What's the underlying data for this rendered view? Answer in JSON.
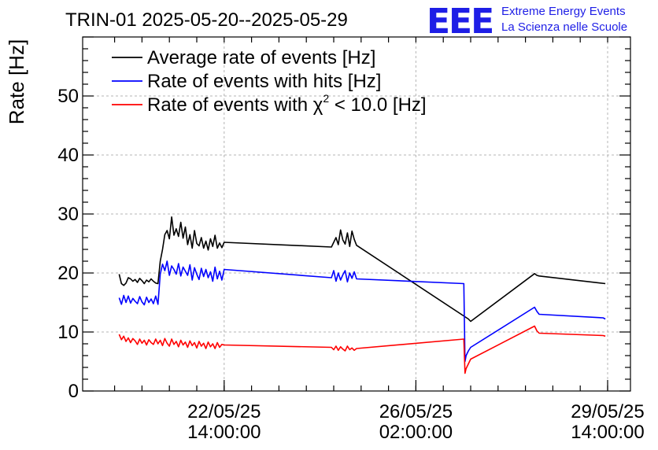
{
  "header": {
    "title": "TRIN-01 2025-05-20--2025-05-29",
    "logo_text": "EEE",
    "logo_line1": "Extreme Energy Events",
    "logo_line2": "La Scienza nelle Scuole"
  },
  "chart_data": {
    "type": "line",
    "title": "TRIN-01 2025-05-20--2025-05-29",
    "ylabel": "Rate [Hz]",
    "xlabel": "",
    "ylim": [
      0,
      60
    ],
    "xlim_hours": [
      0,
      240
    ],
    "grid": true,
    "legend_position": "top-left",
    "x_unit": "hours since 2025-05-20 00:00",
    "x_ticks": [
      {
        "x": 62,
        "line1": "22/05/25",
        "line2": "14:00:00"
      },
      {
        "x": 146,
        "line1": "26/05/25",
        "line2": "02:00:00"
      },
      {
        "x": 230,
        "line1": "29/05/25",
        "line2": "14:00:00"
      }
    ],
    "y_ticks": [
      0,
      10,
      20,
      30,
      40,
      50
    ],
    "series": [
      {
        "name": "Average rate of events [Hz]",
        "color": "#000000",
        "x": [
          16,
          17,
          18,
          19,
          20,
          21,
          22,
          23,
          24,
          25,
          26,
          27,
          28,
          29,
          30,
          31,
          32,
          33,
          34,
          35,
          36,
          37,
          38,
          39,
          40,
          41,
          42,
          43,
          44,
          45,
          46,
          47,
          48,
          49,
          50,
          51,
          52,
          53,
          54,
          55,
          56,
          57,
          58,
          59,
          60,
          61,
          62,
          109,
          110,
          111,
          112,
          113,
          114,
          115,
          116,
          117,
          118,
          119,
          120,
          169,
          170,
          198,
          199,
          200,
          229
        ],
        "y": [
          19.8,
          18.2,
          17.9,
          18.3,
          19.2,
          19.0,
          18.6,
          18.9,
          18.4,
          19.1,
          18.7,
          18.2,
          18.8,
          18.5,
          19.0,
          18.6,
          18.3,
          18.2,
          22.0,
          24.0,
          26.5,
          27.2,
          25.8,
          29.5,
          26.4,
          27.5,
          26.2,
          28.6,
          25.9,
          27.8,
          24.8,
          26.5,
          24.2,
          27.2,
          25.0,
          24.6,
          26.0,
          24.2,
          25.4,
          23.9,
          25.8,
          24.5,
          26.4,
          24.2,
          25.1,
          24.3,
          25.2,
          24.4,
          25.2,
          26.0,
          24.8,
          27.3,
          25.6,
          24.9,
          26.8,
          24.5,
          27.1,
          25.7,
          24.7,
          12.2,
          11.8,
          19.9,
          19.6,
          19.5,
          18.2
        ]
      },
      {
        "name": "Rate of events with hits [Hz]",
        "color": "#0000ff",
        "x": [
          16,
          17,
          18,
          19,
          20,
          21,
          22,
          23,
          24,
          25,
          26,
          27,
          28,
          29,
          30,
          31,
          32,
          33,
          34,
          35,
          36,
          37,
          38,
          39,
          40,
          41,
          42,
          43,
          44,
          45,
          46,
          47,
          48,
          49,
          50,
          51,
          52,
          53,
          54,
          55,
          56,
          57,
          58,
          59,
          60,
          61,
          62,
          109,
          110,
          111,
          112,
          113,
          114,
          115,
          116,
          117,
          118,
          119,
          120,
          167,
          167.5,
          168,
          169,
          170,
          198,
          199,
          200,
          228,
          229
        ],
        "y": [
          15.8,
          14.7,
          16.2,
          15.0,
          16.1,
          14.9,
          15.7,
          15.2,
          14.8,
          16.0,
          15.1,
          14.6,
          15.9,
          15.0,
          15.6,
          14.8,
          16.1,
          14.7,
          19.8,
          21.5,
          20.4,
          22.0,
          19.6,
          21.2,
          20.6,
          19.8,
          21.6,
          19.5,
          21.0,
          20.3,
          19.6,
          21.4,
          18.8,
          20.9,
          19.8,
          18.9,
          20.8,
          19.4,
          20.6,
          19.2,
          20.2,
          18.6,
          21.0,
          19.0,
          20.3,
          18.8,
          20.6,
          19.2,
          20.4,
          18.6,
          20.0,
          18.8,
          19.7,
          20.4,
          18.5,
          20.0,
          19.1,
          20.2,
          19.0,
          18.2,
          5.0,
          6.0,
          6.8,
          7.4,
          14.2,
          13.5,
          13.0,
          12.4,
          12.2
        ]
      },
      {
        "name": "Rate of events with χ² < 10.0 [Hz]",
        "color": "#ff0000",
        "x": [
          16,
          17,
          18,
          19,
          20,
          21,
          22,
          23,
          24,
          25,
          26,
          27,
          28,
          29,
          30,
          31,
          32,
          33,
          34,
          35,
          36,
          37,
          38,
          39,
          40,
          41,
          42,
          43,
          44,
          45,
          46,
          47,
          48,
          49,
          50,
          51,
          52,
          53,
          54,
          55,
          56,
          57,
          58,
          59,
          60,
          61,
          62,
          109,
          110,
          111,
          112,
          113,
          114,
          115,
          116,
          117,
          118,
          119,
          120,
          167,
          167.5,
          168,
          169,
          170,
          198,
          199,
          200,
          228,
          229
        ],
        "y": [
          9.6,
          8.7,
          9.3,
          8.4,
          9.0,
          8.2,
          8.9,
          8.5,
          7.9,
          8.8,
          8.1,
          8.6,
          7.8,
          8.7,
          8.2,
          7.9,
          8.8,
          8.0,
          8.6,
          7.7,
          8.9,
          8.1,
          7.6,
          8.8,
          7.9,
          8.4,
          7.5,
          8.6,
          7.8,
          8.3,
          7.4,
          8.5,
          7.7,
          8.2,
          7.3,
          8.4,
          7.6,
          8.1,
          7.2,
          8.3,
          7.5,
          8.0,
          7.2,
          8.2,
          7.4,
          7.9,
          7.8,
          7.4,
          7.0,
          7.6,
          6.9,
          7.5,
          7.1,
          6.8,
          7.6,
          7.0,
          7.3,
          6.9,
          7.2,
          8.8,
          3.0,
          3.8,
          4.6,
          5.4,
          11.0,
          10.2,
          9.8,
          9.4,
          9.3
        ]
      }
    ]
  }
}
